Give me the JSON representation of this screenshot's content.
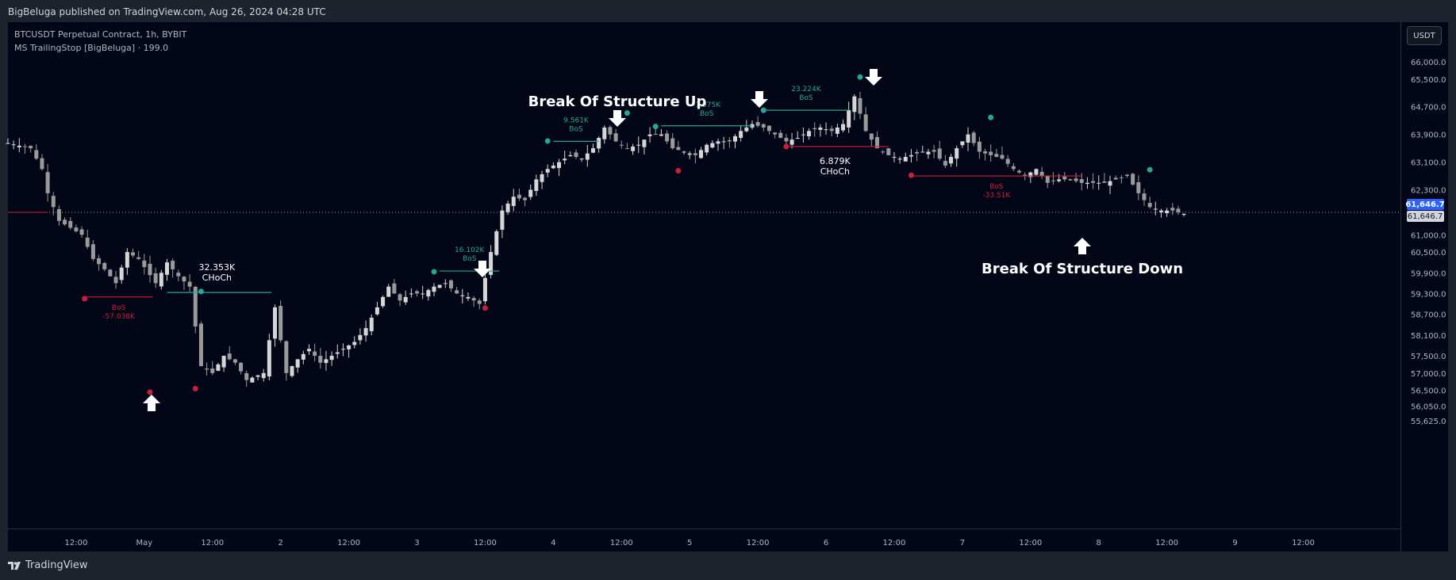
{
  "publish_line": "BigBeluga published on TradingView.com, Aug 26, 2024 04:28 UTC",
  "legend": {
    "symbol": "BTCUSDT Perpetual Contract, 1h, BYBIT",
    "indicator": "MS TrailingStop [BigBeluga] · 199.0"
  },
  "currency_button": "USDT",
  "brand": "TradingView",
  "colors": {
    "background": "#030617",
    "bull": "#d6d6d6",
    "bear": "#9a9a9a",
    "up_signal": "#26a69a",
    "down_signal": "#c8203a",
    "last_price_blue": "#2962ff"
  },
  "chart_data": {
    "type": "candlestick",
    "title": "",
    "xlabel": "",
    "ylabel": "",
    "y_ticks": [
      "66,000.0",
      "65,500.0",
      "64,700.0",
      "63,900.0",
      "63,100.0",
      "62,300.0",
      "61,646.7",
      "61,000.0",
      "60,500.0",
      "59,900.0",
      "59,300.0",
      "58,700.0",
      "58,100.0",
      "57,500.0",
      "57,000.0",
      "56,500.0",
      "56,050.0",
      "55,625.0"
    ],
    "y_tick_values": [
      66000,
      65500,
      64700,
      63900,
      63100,
      62300,
      61646.7,
      61000,
      60500,
      59900,
      59300,
      58700,
      58100,
      57500,
      57000,
      56500,
      56050,
      55625
    ],
    "x_ticks": [
      "12:00",
      "May",
      "12:00",
      "2",
      "12:00",
      "3",
      "12:00",
      "4",
      "12:00",
      "5",
      "12:00",
      "6",
      "12:00",
      "7",
      "12:00",
      "8",
      "12:00",
      "9",
      "12:00"
    ],
    "x_tick_hours": [
      12,
      24,
      36,
      48,
      60,
      72,
      84,
      96,
      108,
      120,
      132,
      144,
      156,
      168,
      180,
      192,
      204,
      216,
      228
    ],
    "x_range_hours": [
      0,
      228
    ],
    "last_price": "61,646.7",
    "last_price_value": 61646.7,
    "closes_keypoints": [
      [
        0,
        63650
      ],
      [
        4,
        63500
      ],
      [
        6,
        62900
      ],
      [
        7,
        62200
      ],
      [
        9,
        61400
      ],
      [
        11,
        61200
      ],
      [
        13,
        61000
      ],
      [
        15,
        60300
      ],
      [
        17,
        60000
      ],
      [
        19,
        59600
      ],
      [
        21,
        60500
      ],
      [
        23,
        60300
      ],
      [
        26,
        59600
      ],
      [
        28,
        60200
      ],
      [
        30,
        59800
      ],
      [
        32,
        59500
      ],
      [
        34,
        57200
      ],
      [
        36,
        57000
      ],
      [
        38,
        57500
      ],
      [
        40,
        57300
      ],
      [
        42,
        56800
      ],
      [
        45,
        57000
      ],
      [
        47,
        58900
      ],
      [
        49,
        57000
      ],
      [
        51,
        57400
      ],
      [
        53,
        57700
      ],
      [
        55,
        57300
      ],
      [
        57,
        57500
      ],
      [
        59,
        57700
      ],
      [
        61,
        57900
      ],
      [
        63,
        58300
      ],
      [
        65,
        58900
      ],
      [
        67,
        59500
      ],
      [
        69,
        59100
      ],
      [
        71,
        59300
      ],
      [
        73,
        59300
      ],
      [
        75,
        59500
      ],
      [
        77,
        59600
      ],
      [
        79,
        59300
      ],
      [
        81,
        59200
      ],
      [
        83,
        59000
      ],
      [
        85,
        60500
      ],
      [
        87,
        61700
      ],
      [
        89,
        62100
      ],
      [
        91,
        62000
      ],
      [
        93,
        62600
      ],
      [
        95,
        62900
      ],
      [
        97,
        63100
      ],
      [
        99,
        63300
      ],
      [
        101,
        63200
      ],
      [
        103,
        63500
      ],
      [
        105,
        64100
      ],
      [
        107,
        63700
      ],
      [
        109,
        63500
      ],
      [
        111,
        63600
      ],
      [
        113,
        63900
      ],
      [
        115,
        63900
      ],
      [
        117,
        63500
      ],
      [
        119,
        63400
      ],
      [
        121,
        63300
      ],
      [
        123,
        63600
      ],
      [
        125,
        63700
      ],
      [
        127,
        63700
      ],
      [
        129,
        64000
      ],
      [
        131,
        64200
      ],
      [
        133,
        64100
      ],
      [
        135,
        63900
      ],
      [
        137,
        63700
      ],
      [
        139,
        63800
      ],
      [
        141,
        64000
      ],
      [
        143,
        64100
      ],
      [
        145,
        64000
      ],
      [
        147,
        64200
      ],
      [
        149,
        65000
      ],
      [
        151,
        64000
      ],
      [
        153,
        63500
      ],
      [
        155,
        63300
      ],
      [
        157,
        63200
      ],
      [
        159,
        63300
      ],
      [
        161,
        63400
      ],
      [
        163,
        63400
      ],
      [
        165,
        63000
      ],
      [
        167,
        63500
      ],
      [
        169,
        63900
      ],
      [
        171,
        63400
      ],
      [
        173,
        63300
      ],
      [
        175,
        63200
      ],
      [
        177,
        62900
      ],
      [
        179,
        62700
      ],
      [
        181,
        62900
      ],
      [
        183,
        62500
      ],
      [
        185,
        62600
      ],
      [
        187,
        62600
      ],
      [
        189,
        62500
      ],
      [
        191,
        62500
      ],
      [
        193,
        62500
      ],
      [
        195,
        62600
      ],
      [
        197,
        62700
      ],
      [
        199,
        62200
      ],
      [
        201,
        61800
      ],
      [
        203,
        61700
      ],
      [
        205,
        61700
      ],
      [
        207,
        61600
      ]
    ],
    "trailing_lines": [
      {
        "kind": "up",
        "from_hour": 28,
        "to_hour": 46.4,
        "level": 59330,
        "label_value": "32.353K",
        "label_type": "CHoCh"
      },
      {
        "kind": "up",
        "from_hour": 76,
        "to_hour": 86.5,
        "level": 59950,
        "label_value": "16.102K",
        "label_type": "BoS"
      },
      {
        "kind": "up",
        "from_hour": 96,
        "to_hour": 104,
        "level": 63700,
        "label_value": "9.561K",
        "label_type": "BoS"
      },
      {
        "kind": "up",
        "from_hour": 115,
        "to_hour": 131,
        "level": 64150,
        "label_value": "-3.075K",
        "label_type": "BoS"
      },
      {
        "kind": "up",
        "from_hour": 133,
        "to_hour": 148,
        "level": 64600,
        "label_value": "23.224K",
        "label_type": "BoS"
      },
      {
        "kind": "down",
        "from_hour": 13.5,
        "to_hour": 25.5,
        "level": 59200,
        "label_value": "-57.038K",
        "label_type": "BoS"
      },
      {
        "kind": "down",
        "from_hour": 137,
        "to_hour": 155,
        "level": 63550,
        "label_value": "6.879K",
        "label_type": "CHoCh"
      },
      {
        "kind": "down",
        "from_hour": 159,
        "to_hour": 189,
        "level": 62700,
        "label_value": "-33.51K",
        "label_type": "BoS"
      }
    ],
    "pivots": [
      {
        "kind": "low",
        "hour": 13.5,
        "value": 59150
      },
      {
        "kind": "low",
        "hour": 25,
        "value": 56450
      },
      {
        "kind": "low",
        "hour": 33,
        "value": 56550
      },
      {
        "kind": "high",
        "hour": 34,
        "value": 59360
      },
      {
        "kind": "high",
        "hour": 75,
        "value": 59930
      },
      {
        "kind": "low",
        "hour": 84,
        "value": 58880
      },
      {
        "kind": "high",
        "hour": 95,
        "value": 63710
      },
      {
        "kind": "high",
        "hour": 109,
        "value": 64520
      },
      {
        "kind": "high",
        "hour": 114,
        "value": 64130
      },
      {
        "kind": "low",
        "hour": 118,
        "value": 62850
      },
      {
        "kind": "high",
        "hour": 133,
        "value": 64600
      },
      {
        "kind": "low",
        "hour": 137,
        "value": 63550
      },
      {
        "kind": "high",
        "hour": 150,
        "value": 65560
      },
      {
        "kind": "low",
        "hour": 159,
        "value": 62720
      },
      {
        "kind": "high",
        "hour": 173,
        "value": 64390
      },
      {
        "kind": "high",
        "hour": 201,
        "value": 62880
      }
    ]
  },
  "annotations": {
    "break_up": "Break Of Structure Up",
    "break_down": "Break Of Structure Down"
  }
}
